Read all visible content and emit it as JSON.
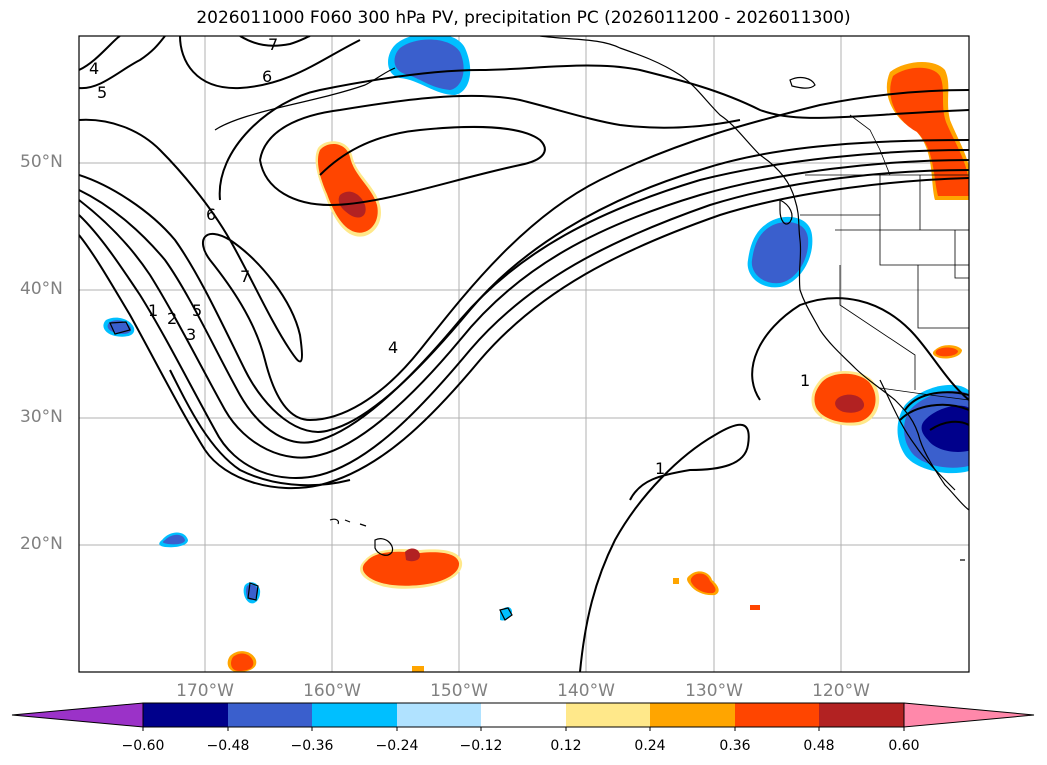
{
  "title": "2026011000 F060 300 hPa PV, precipitation PC (2026011200 - 2026011300)",
  "lat_labels": [
    "50°N",
    "40°N",
    "30°N",
    "20°N"
  ],
  "lon_labels": [
    "170°W",
    "160°W",
    "150°W",
    "140°W",
    "130°W",
    "120°W"
  ],
  "contour_labels": [
    "7",
    "6",
    "4",
    "5",
    "6",
    "7",
    "1",
    "2",
    "3",
    "4",
    "1",
    "1",
    "5"
  ],
  "colorbar": {
    "ticks": [
      "−0.60",
      "−0.48",
      "−0.36",
      "−0.24",
      "−0.12",
      "0.12",
      "0.24",
      "0.36",
      "0.48",
      "0.60"
    ],
    "colors": [
      "#9b32c8",
      "#00008b",
      "#3a5fcd",
      "#00bfff",
      "#b0e2ff",
      "#ffffff",
      "#ffe88a",
      "#ffa500",
      "#ff4500",
      "#b22222",
      "#ff88aa"
    ]
  }
}
